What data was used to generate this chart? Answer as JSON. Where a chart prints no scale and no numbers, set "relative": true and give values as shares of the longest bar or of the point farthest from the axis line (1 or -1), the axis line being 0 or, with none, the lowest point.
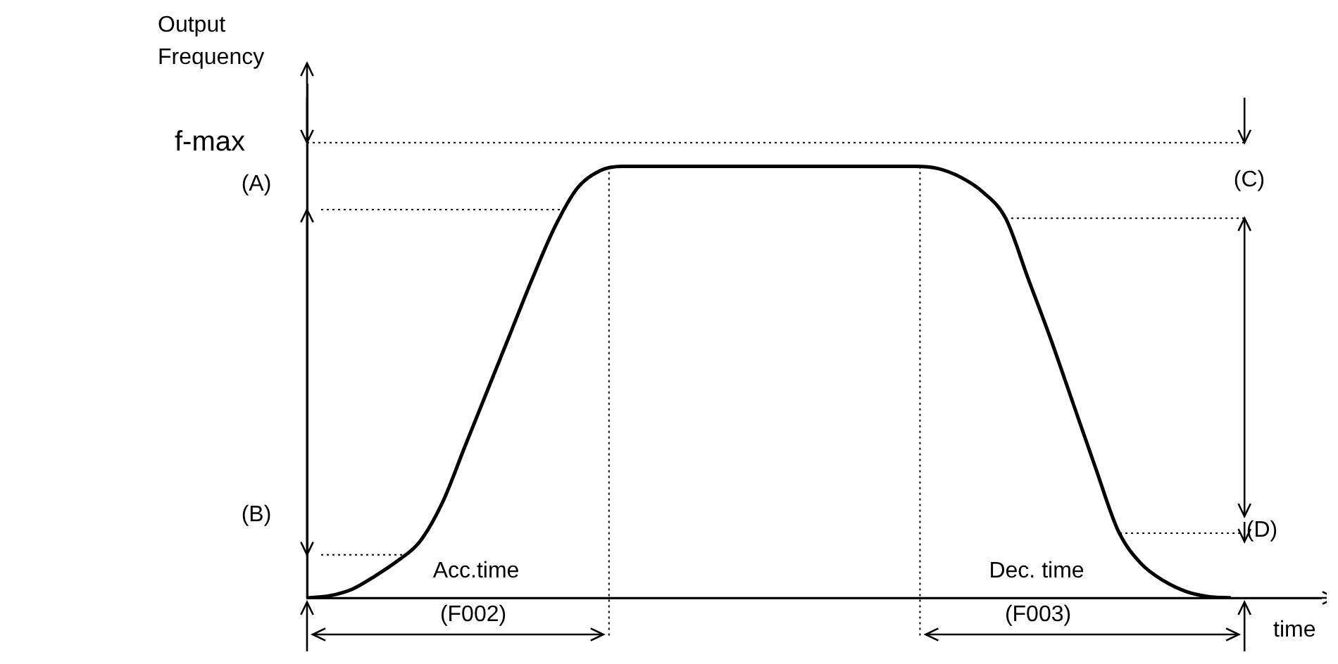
{
  "chart_data": {
    "type": "line",
    "relative": true,
    "ylabel": "Output Frequency",
    "xlabel": "time",
    "categories": [
      null,
      null,
      null,
      null,
      null,
      null,
      null,
      null,
      null,
      null,
      null,
      null,
      null,
      null,
      null,
      null,
      null,
      null,
      null,
      null,
      null,
      null,
      null,
      null,
      null,
      null,
      null,
      null,
      null,
      null,
      null,
      null,
      null,
      null,
      null,
      null,
      null,
      null,
      null,
      null,
      null,
      null,
      null,
      null,
      null,
      null
    ],
    "series": [
      {
        "color": "#000000",
        "values": [
          0,
          0.005,
          0.02,
          0.05,
          0.085,
          0.13,
          0.22,
          0.35,
          0.48,
          0.61,
          0.74,
          0.86,
          0.95,
          0.99,
          1,
          1,
          1,
          1,
          1,
          1,
          1,
          1,
          1,
          1,
          1,
          1,
          1,
          1,
          0.995,
          0.975,
          0.94,
          0.88,
          0.74,
          0.6,
          0.45,
          0.3,
          0.155,
          0.08,
          0.04,
          0.015,
          0.003,
          0,
          null,
          null,
          null,
          null
        ]
      }
    ],
    "ref_lines": [
      {
        "axis": "y",
        "value": 1.055,
        "label": "f-max",
        "line_style": "dotted"
      },
      {
        "axis": "y",
        "value": 0.9,
        "line_style": "dotted"
      },
      {
        "axis": "y",
        "value": 0.1,
        "line_style": "dotted"
      },
      {
        "axis": "y",
        "value": 0.88,
        "line_style": "dotted"
      },
      {
        "axis": "y",
        "value": 0.15,
        "line_style": "dotted"
      }
    ],
    "annotations": [
      "(A)",
      "(B)",
      "(C)",
      "(D)",
      "Acc.time",
      "(F002)",
      "Dec. time",
      "(F003)"
    ],
    "marker": "none",
    "line_style": "solid",
    "legend": false
  }
}
